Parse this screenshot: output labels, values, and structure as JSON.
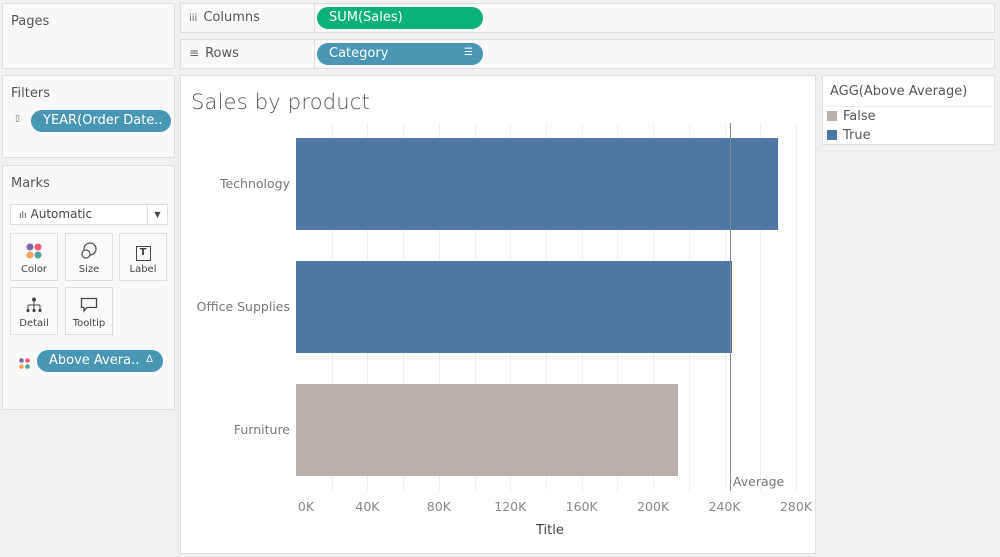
{
  "pages": {
    "title": "Pages"
  },
  "shelves": {
    "columns": {
      "label": "Columns",
      "icon": "iii",
      "pill": "SUM(Sales)"
    },
    "rows": {
      "label": "Rows",
      "icon": "≡",
      "pill": "Category"
    }
  },
  "filters": {
    "title": "Filters",
    "pill": "YEAR(Order Date.."
  },
  "marks": {
    "title": "Marks",
    "type": "Automatic",
    "buttons": [
      {
        "label": "Color"
      },
      {
        "label": "Size"
      },
      {
        "label": "Label"
      },
      {
        "label": "Detail"
      },
      {
        "label": "Tooltip"
      }
    ],
    "color_pill": "Above Avera.."
  },
  "legend": {
    "title": "AGG(Above Average)",
    "items": [
      {
        "label": "False",
        "color": "#bab0ac"
      },
      {
        "label": "True",
        "color": "#4e79a7"
      }
    ]
  },
  "chart_data": {
    "type": "bar",
    "orientation": "horizontal",
    "title": "Sales by product",
    "xlabel": "Title",
    "ylabel": "",
    "categories": [
      "Technology",
      "Office Supplies",
      "Furniture"
    ],
    "values": [
      270000,
      244000,
      214000
    ],
    "above_average": [
      true,
      true,
      false
    ],
    "colors": {
      "true": "#4e79a7",
      "false": "#bab0ac"
    },
    "xlim": [
      0,
      280000
    ],
    "xticks": [
      "0K",
      "40K",
      "80K",
      "120K",
      "160K",
      "200K",
      "240K",
      "280K"
    ],
    "reference_line": {
      "label": "Average",
      "value": 243000
    },
    "grid": true,
    "legend_position": "right"
  }
}
